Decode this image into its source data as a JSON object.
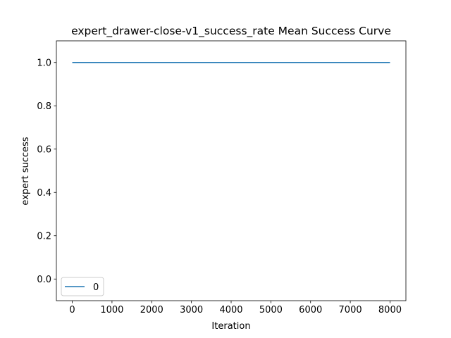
{
  "chart_data": {
    "type": "line",
    "title": "expert_drawer-close-v1_success_rate Mean Success Curve",
    "xlabel": "Iteration",
    "ylabel": "expert success",
    "xlim": [
      -400,
      8400
    ],
    "ylim": [
      -0.1,
      1.1
    ],
    "xticks": [
      0,
      1000,
      2000,
      3000,
      4000,
      5000,
      6000,
      7000,
      8000
    ],
    "yticks": [
      0.0,
      0.2,
      0.4,
      0.6,
      0.8,
      1.0
    ],
    "xtick_labels": [
      "0",
      "1000",
      "2000",
      "3000",
      "4000",
      "5000",
      "6000",
      "7000",
      "8000"
    ],
    "ytick_labels": [
      "0.0",
      "0.2",
      "0.4",
      "0.6",
      "0.8",
      "1.0"
    ],
    "grid": false,
    "legend_position": "lower-left",
    "series": [
      {
        "name": "0",
        "color": "#1f77b4",
        "x": [
          0,
          1000,
          2000,
          3000,
          4000,
          5000,
          6000,
          7000,
          8000
        ],
        "y": [
          1.0,
          1.0,
          1.0,
          1.0,
          1.0,
          1.0,
          1.0,
          1.0,
          1.0
        ]
      }
    ]
  }
}
